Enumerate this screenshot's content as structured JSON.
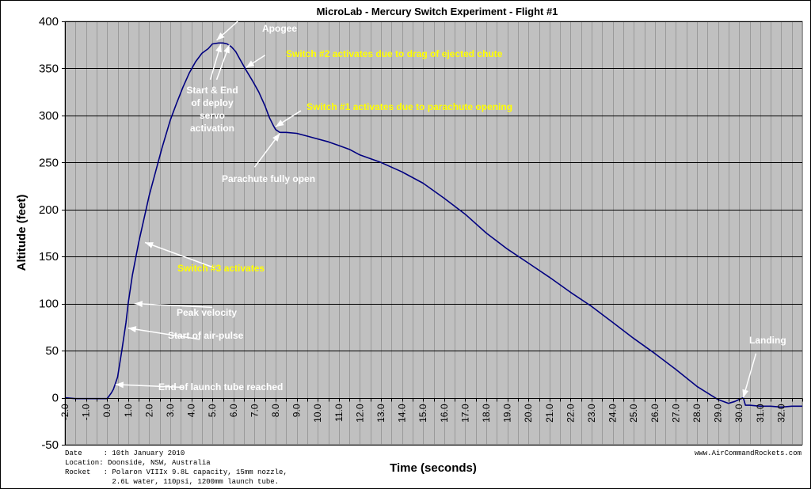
{
  "chart_data": {
    "type": "line",
    "title": "MicroLab - Mercury Switch Experiment - Flight #1",
    "xlabel": "Time (seconds)",
    "ylabel": "Altitude (feet)",
    "xlim": [
      -2.0,
      33.0
    ],
    "ylim": [
      -50,
      400
    ],
    "xticks": [
      -2,
      -1,
      0,
      1,
      2,
      3,
      4,
      5,
      6,
      7,
      8,
      9,
      10,
      11,
      12,
      13,
      14,
      15,
      16,
      17,
      18,
      19,
      20,
      21,
      22,
      23,
      24,
      25,
      26,
      27,
      28,
      29,
      30,
      31,
      32
    ],
    "xtick_labels": [
      "-2.0",
      "-1.0",
      "0.0",
      "1.0",
      "2.0",
      "3.0",
      "4.0",
      "5.0",
      "6.0",
      "7.0",
      "8.0",
      "9.0",
      "10.0",
      "11.0",
      "12.0",
      "13.0",
      "14.0",
      "15.0",
      "16.0",
      "17.0",
      "18.0",
      "19.0",
      "20.0",
      "21.0",
      "22.0",
      "23.0",
      "24.0",
      "25.0",
      "26.0",
      "27.0",
      "28.0",
      "29.0",
      "30.0",
      "31.0",
      "32.0"
    ],
    "yticks": [
      -50,
      0,
      50,
      100,
      150,
      200,
      250,
      300,
      350,
      400
    ],
    "ytick_labels": [
      "-50",
      "0",
      "50",
      "100",
      "150",
      "200",
      "250",
      "300",
      "350",
      "400"
    ],
    "minor_x_step": 0.5,
    "grid": true,
    "plot_bg": "#c0c0c0",
    "line_color": "#000080",
    "series": [
      {
        "name": "",
        "x": [
          -2.0,
          -1.5,
          -1.0,
          -0.5,
          0.0,
          0.1,
          0.2,
          0.3,
          0.5,
          0.7,
          0.9,
          1.0,
          1.2,
          1.5,
          1.8,
          2.0,
          2.3,
          2.6,
          3.0,
          3.3,
          3.6,
          3.9,
          4.2,
          4.5,
          4.8,
          5.0,
          5.3,
          5.5,
          5.7,
          5.9,
          6.1,
          6.3,
          6.6,
          6.9,
          7.2,
          7.5,
          7.7,
          7.9,
          8.0,
          8.2,
          8.5,
          9.0,
          9.5,
          10.0,
          10.5,
          11.0,
          11.5,
          12.0,
          13.0,
          14.0,
          15.0,
          16.0,
          17.0,
          18.0,
          19.0,
          20.0,
          21.0,
          22.0,
          23.0,
          24.0,
          25.0,
          26.0,
          27.0,
          28.0,
          29.0,
          29.5,
          29.8,
          30.0,
          30.2,
          30.3,
          30.5,
          31.0,
          31.5,
          32.0,
          32.5,
          33.0
        ],
        "y": [
          0,
          -1,
          -1,
          -1,
          -1,
          2,
          5,
          9,
          22,
          50,
          80,
          100,
          130,
          165,
          195,
          215,
          240,
          265,
          295,
          313,
          330,
          345,
          357,
          366,
          371,
          376,
          377,
          377,
          376,
          373,
          368,
          360,
          348,
          337,
          325,
          310,
          298,
          289,
          285,
          282,
          282,
          281,
          278,
          275,
          272,
          268,
          264,
          258,
          250,
          240,
          228,
          212,
          195,
          175,
          158,
          143,
          128,
          112,
          97,
          80,
          63,
          47,
          30,
          12,
          -2,
          -6,
          -4,
          -2,
          0,
          -8,
          -8,
          -9,
          -9,
          -10,
          -9,
          -9
        ]
      }
    ],
    "annotations": [
      {
        "text": "Apogee",
        "color": "#ffffff"
      },
      {
        "text": "Switch #2 activates due to drag of ejected chute",
        "color": "#ffff00"
      },
      {
        "text": "Start & End",
        "color": "#ffffff"
      },
      {
        "text": "of deploy",
        "color": "#ffffff"
      },
      {
        "text": "servo",
        "color": "#ffffff"
      },
      {
        "text": "activation",
        "color": "#ffffff"
      },
      {
        "text": "Switch #1 activates due to parachute opening",
        "color": "#ffff00"
      },
      {
        "text": "Parachute fully open",
        "color": "#ffffff"
      },
      {
        "text": "Switch #3 activates",
        "color": "#ffff00"
      },
      {
        "text": "Peak velocity",
        "color": "#ffffff"
      },
      {
        "text": "Start of air-pulse",
        "color": "#ffffff"
      },
      {
        "text": "End of launch tube reached",
        "color": "#ffffff"
      },
      {
        "text": "Landing",
        "color": "#ffffff"
      }
    ]
  },
  "footer": {
    "info_lines": [
      "Date     : 10th January 2010",
      "Location: Doonside, NSW, Australia",
      "Rocket   : Polaron VIIIx 9.8L capacity, 15mm nozzle,",
      "           2.6L water, 110psi, 1200mm launch tube."
    ],
    "website": "www.AirCommandRockets.com"
  }
}
